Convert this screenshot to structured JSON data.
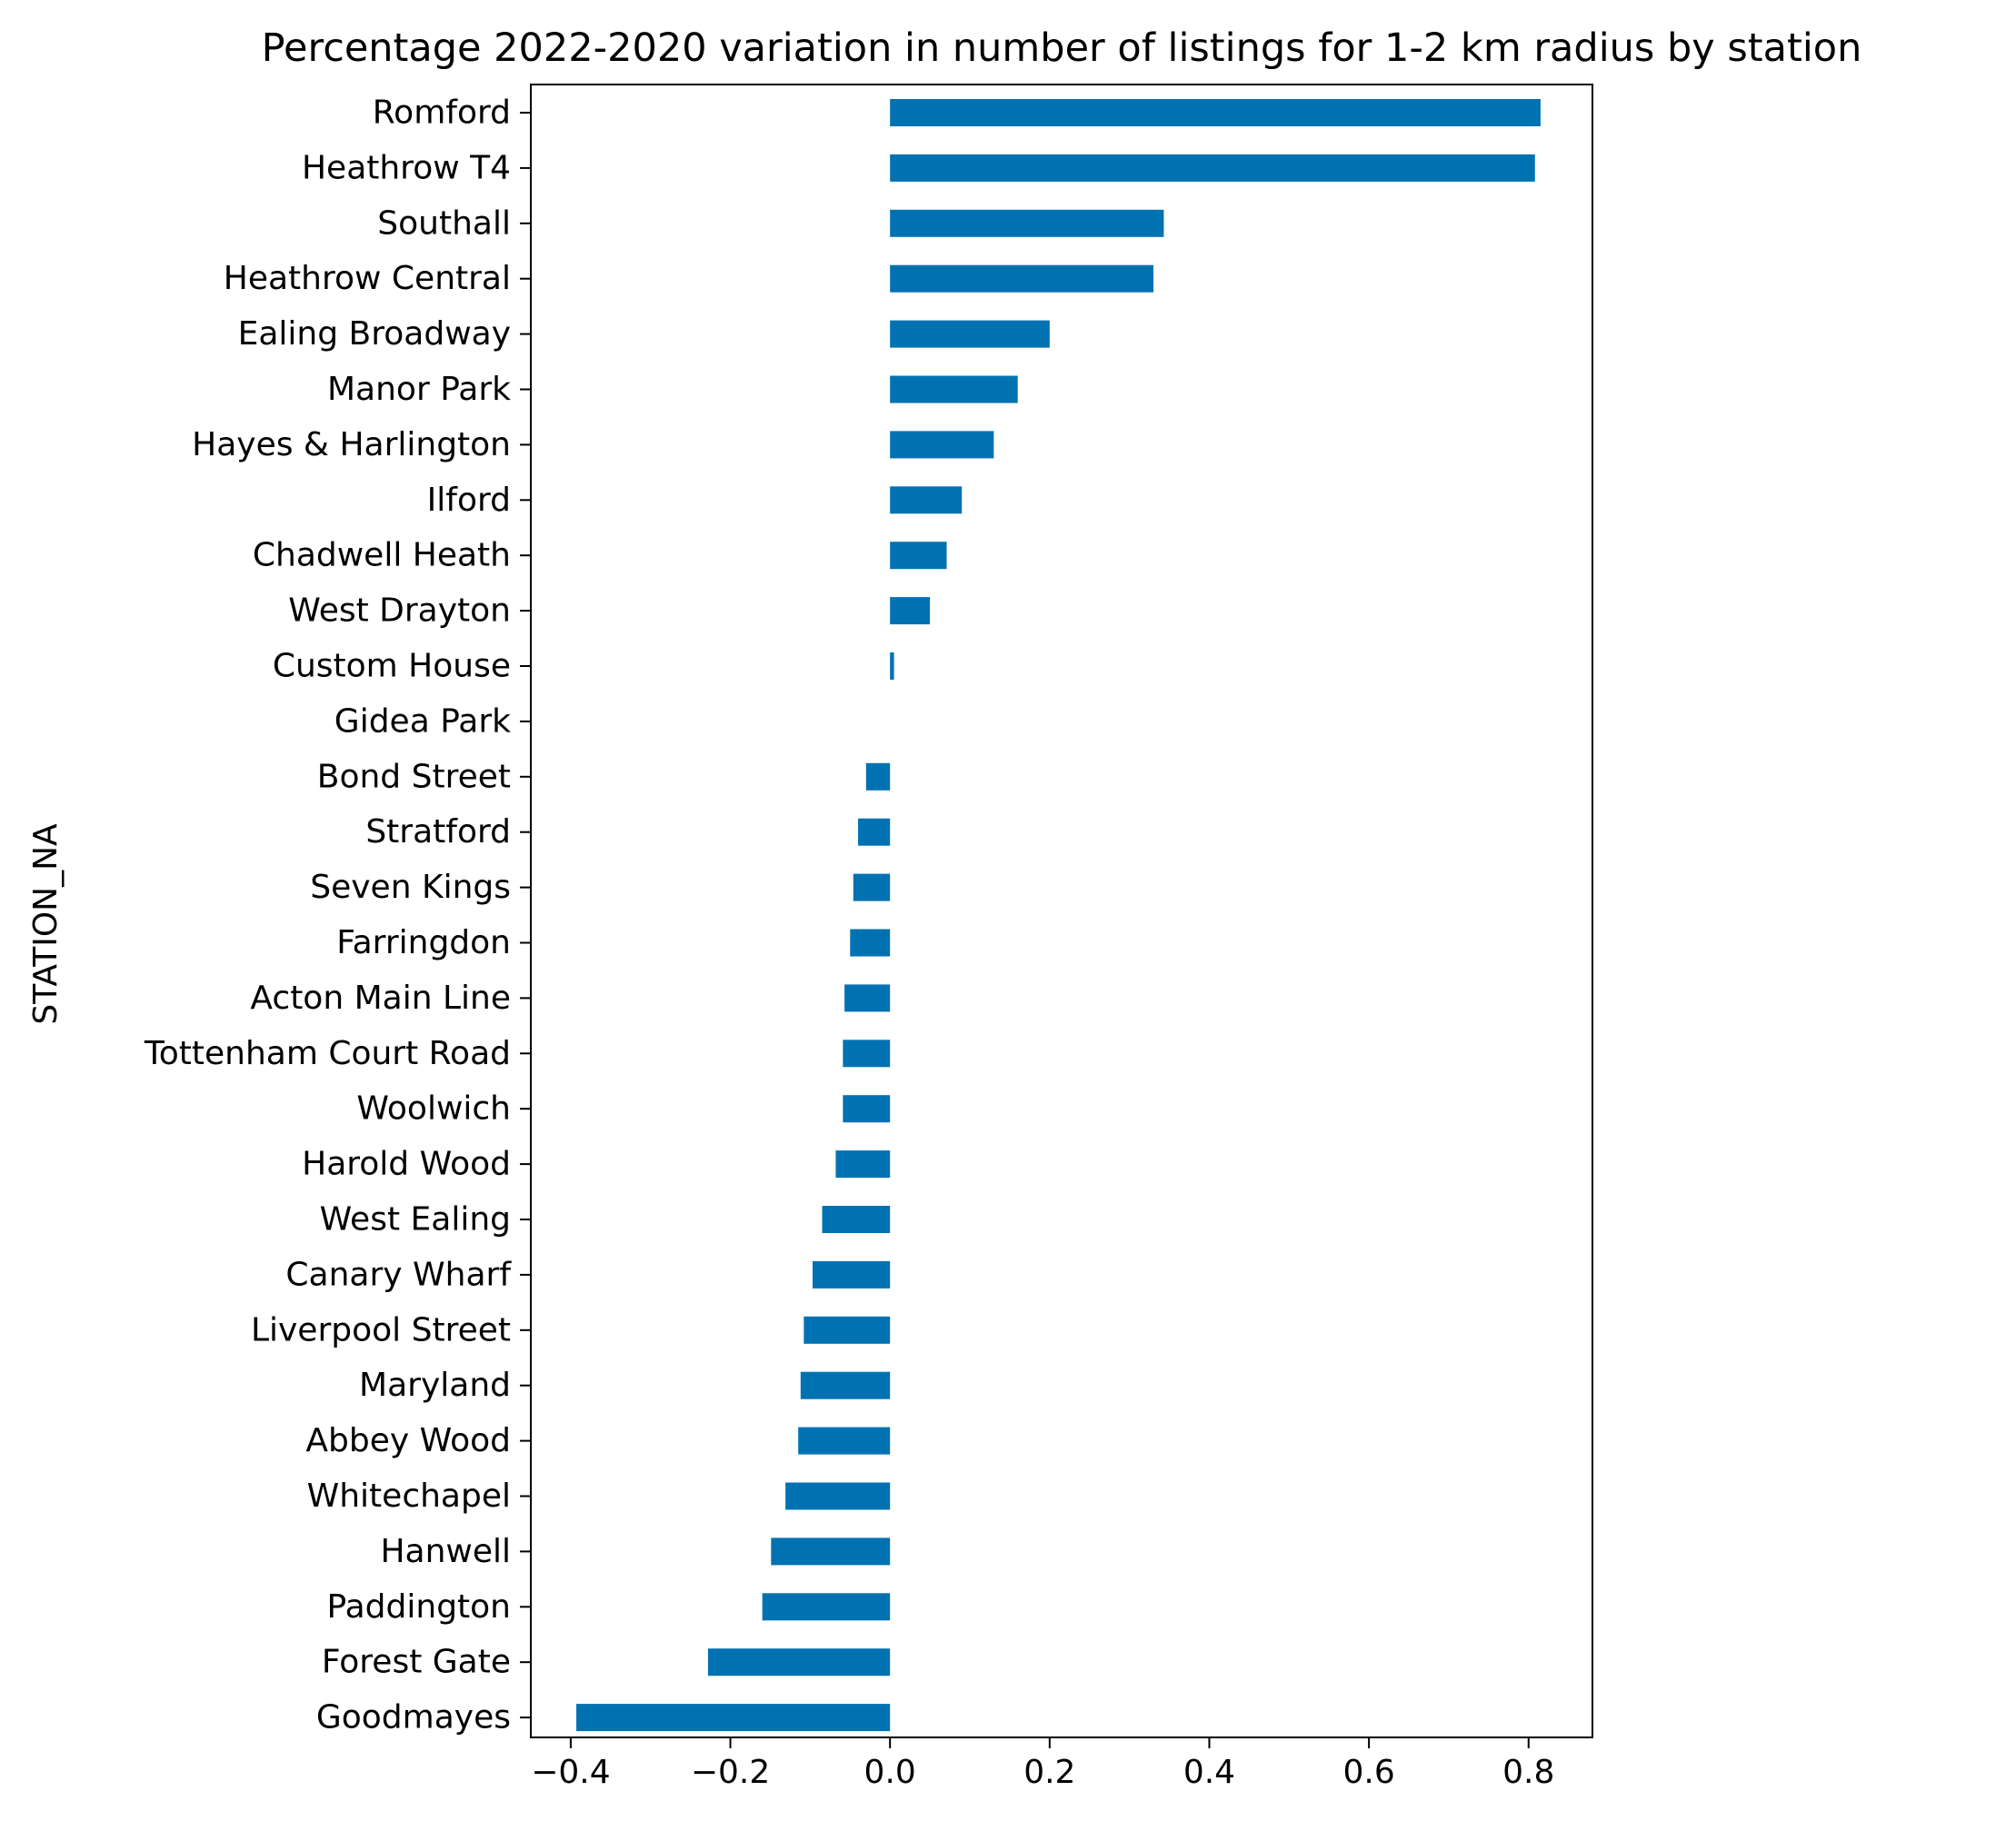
{
  "chart_data": {
    "type": "bar",
    "orientation": "horizontal",
    "title": "Percentage 2022-2020 variation in number of listings for 1-2 km radius by station",
    "xlabel": "",
    "ylabel": "STATION_NA",
    "xlim": [
      -0.45,
      0.88
    ],
    "xticks": [
      -0.4,
      -0.2,
      0.0,
      0.2,
      0.4,
      0.6,
      0.8
    ],
    "xtick_labels": [
      "−0.4",
      "−0.2",
      "0.0",
      "0.2",
      "0.4",
      "0.6",
      "0.8"
    ],
    "grid": false,
    "bar_color": "#0072b2",
    "categories": [
      "Romford",
      "Heathrow T4",
      "Southall",
      "Heathrow Central",
      "Ealing Broadway",
      "Manor Park",
      "Hayes & Harlington",
      "Ilford",
      "Chadwell Heath",
      "West Drayton",
      "Custom House",
      "Gidea Park",
      "Bond Street",
      "Stratford",
      "Seven Kings",
      "Farringdon",
      "Acton Main Line",
      "Tottenham Court Road",
      "Woolwich",
      "Harold Wood",
      "West Ealing",
      "Canary Wharf",
      "Liverpool Street",
      "Maryland",
      "Abbey Wood",
      "Whitechapel",
      "Hanwell",
      "Paddington",
      "Forest Gate",
      "Goodmayes"
    ],
    "values": [
      0.815,
      0.808,
      0.343,
      0.33,
      0.2,
      0.16,
      0.13,
      0.09,
      0.071,
      0.05,
      0.005,
      0.0,
      -0.03,
      -0.04,
      -0.046,
      -0.05,
      -0.057,
      -0.059,
      -0.059,
      -0.068,
      -0.085,
      -0.097,
      -0.108,
      -0.112,
      -0.115,
      -0.131,
      -0.149,
      -0.16,
      -0.228,
      -0.393
    ]
  }
}
